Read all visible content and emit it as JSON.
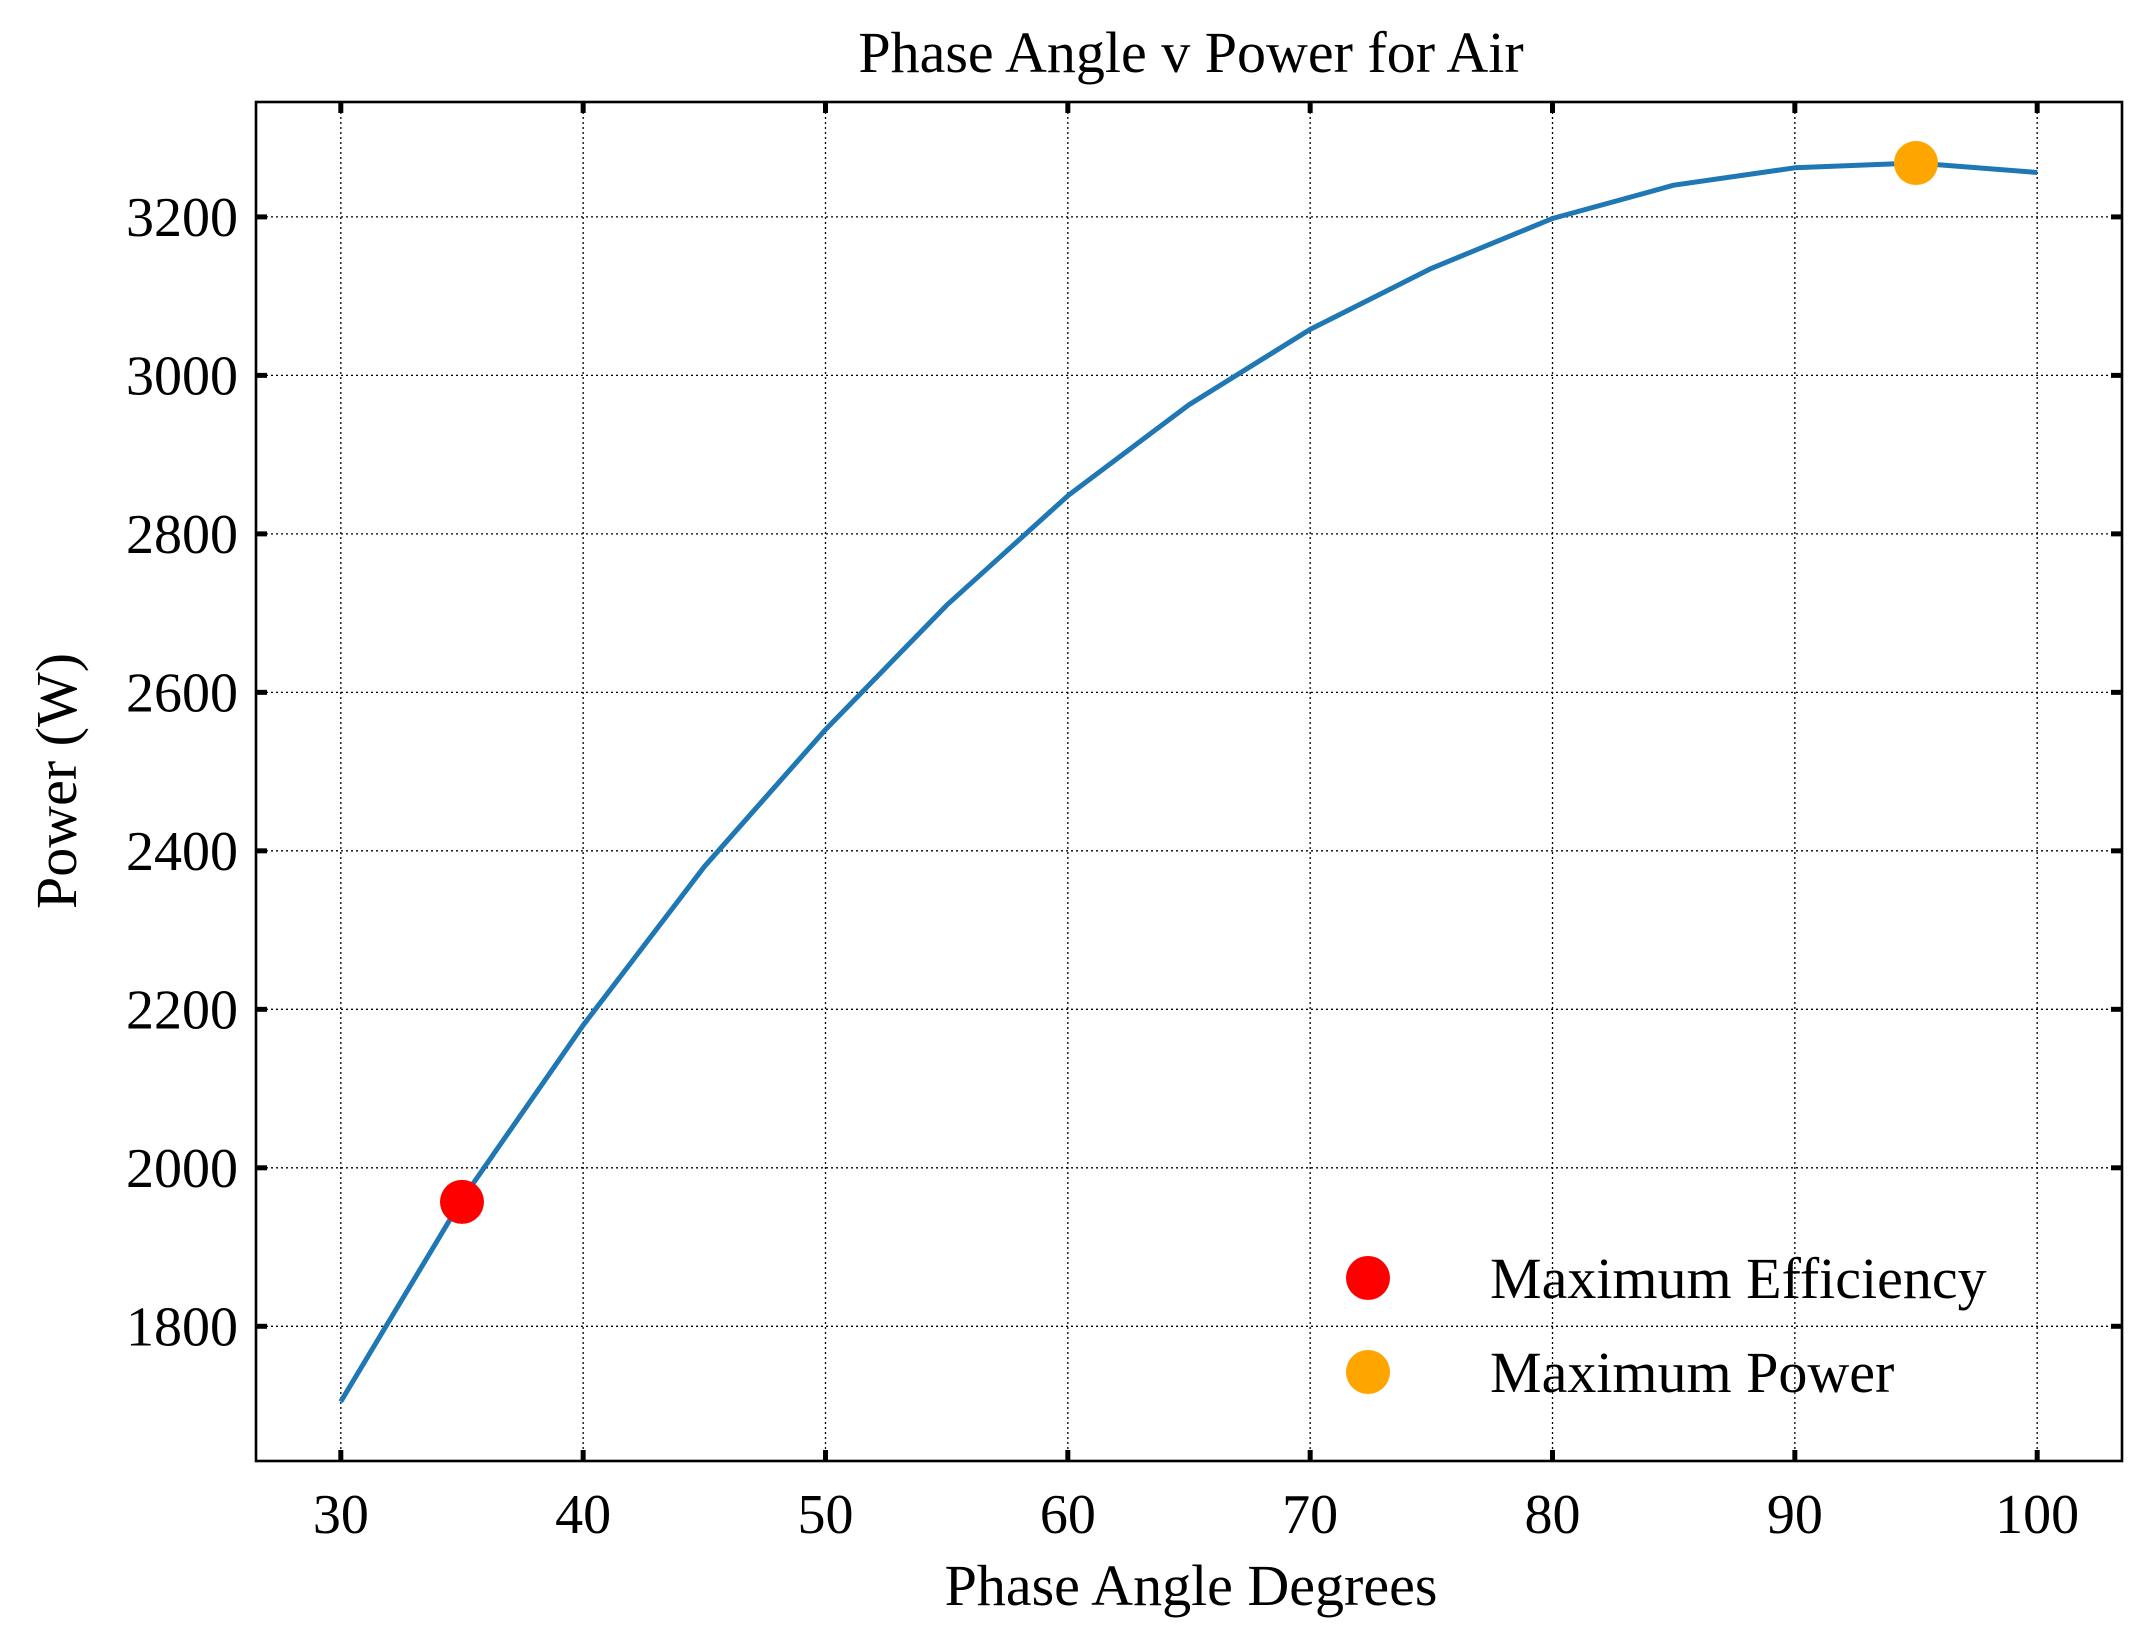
{
  "chart_data": {
    "type": "line",
    "title": "Phase Angle v Power for Air",
    "xlabel": "Phase Angle Degrees",
    "ylabel": "Power (W)",
    "xlim": [
      26.5,
      103.5
    ],
    "ylim": [
      1630,
      3345
    ],
    "xticks": [
      30,
      40,
      50,
      60,
      70,
      80,
      90,
      100
    ],
    "yticks": [
      1800,
      2000,
      2200,
      2400,
      2600,
      2800,
      3000,
      3200
    ],
    "grid": true,
    "legend_position": "lower-right",
    "series": [
      {
        "color": "#1f77b4",
        "x": [
          30,
          35,
          40,
          45,
          50,
          55,
          60,
          65,
          70,
          75,
          80,
          85,
          90,
          95,
          100
        ],
        "y": [
          1705,
          1960,
          2180,
          2380,
          2553,
          2710,
          2848,
          2963,
          3058,
          3135,
          3198,
          3240,
          3262,
          3268,
          3256
        ]
      }
    ],
    "points": [
      {
        "name": "Maximum Efficiency",
        "x": 35,
        "y": 1957,
        "color": "#ff0000"
      },
      {
        "name": "Maximum Power",
        "x": 95,
        "y": 3268,
        "color": "#ffa500"
      }
    ]
  }
}
